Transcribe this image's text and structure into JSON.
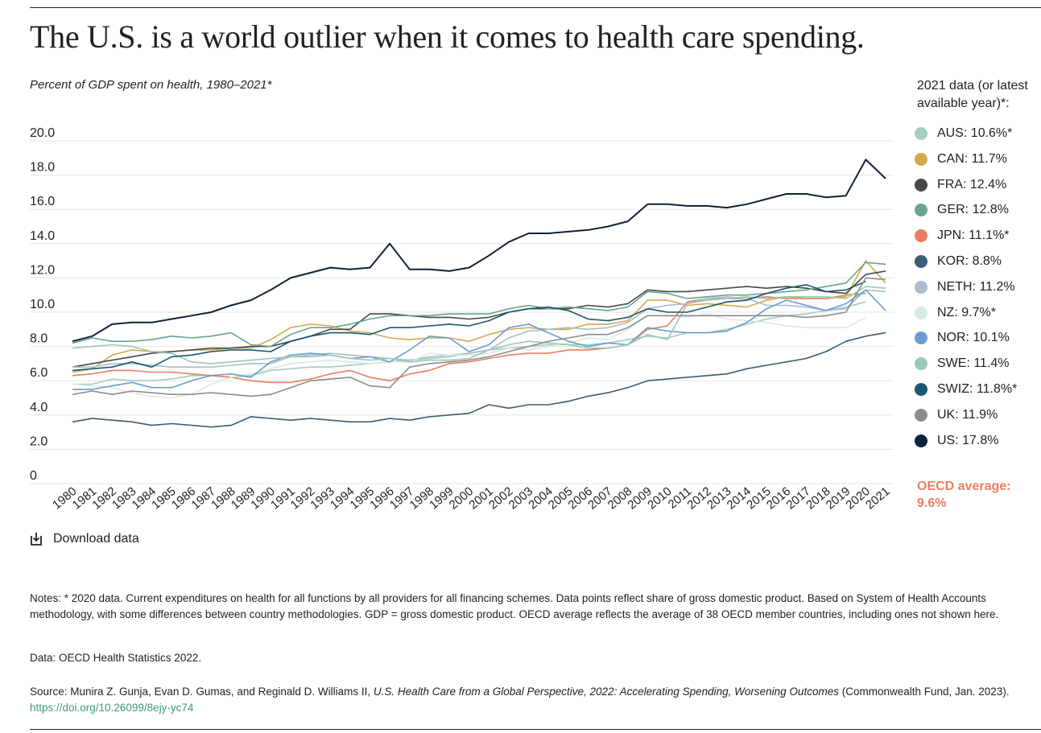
{
  "title": "The U.S. is a world outlier when it comes to health care spending.",
  "subtitle": "Percent of GDP spent on health, 1980–2021*",
  "legend": {
    "heading": "2021 data (or latest available year)*:",
    "oecd_average": "OECD average: 9.6%",
    "oecd_color": "#e8805e"
  },
  "download_label": "Download data",
  "notes": {
    "note": "Notes: * 2020 data. Current expenditures on health for all functions by all providers for all financing schemes. Data points reflect share of gross domestic product. Based on System of Health Accounts methodology, with some differences between country methodologies. GDP = gross domestic product. OECD average reflects the average of 38 OECD member countries, including ones not shown here.",
    "data_source": "Data: OECD Health Statistics 2022.",
    "source_prefix": "Source: Munira Z. Gunja, Evan D. Gumas, and Reginald D. Williams II, ",
    "source_title": "U.S. Health Care from a Global Perspective, 2022: Accelerating Spending, Worsening Outcomes",
    "source_suffix": " (Commonwealth Fund, Jan. 2023). ",
    "source_link": "https://doi.org/10.26099/8ejy-yc74"
  },
  "chart_data": {
    "type": "line",
    "x": [
      1980,
      1981,
      1982,
      1983,
      1984,
      1985,
      1986,
      1987,
      1988,
      1989,
      1990,
      1991,
      1992,
      1993,
      1994,
      1995,
      1996,
      1997,
      1998,
      1999,
      2000,
      2001,
      2002,
      2003,
      2004,
      2005,
      2006,
      2007,
      2008,
      2009,
      2010,
      2011,
      2012,
      2013,
      2014,
      2015,
      2016,
      2017,
      2018,
      2019,
      2020,
      2021
    ],
    "y_ticks": [
      "0",
      "2.0",
      "4.0",
      "6.0",
      "8.0",
      "10.0",
      "12.0",
      "14.0",
      "16.0",
      "18.0",
      "20.0"
    ],
    "ylim": [
      0,
      20
    ],
    "grid": true,
    "series": [
      {
        "name": "AUS",
        "legend": "AUS: 10.6%*",
        "color": "#a3cdbf",
        "values": [
          5.8,
          5.8,
          6.1,
          6.0,
          6.0,
          6.1,
          6.3,
          6.3,
          6.2,
          6.3,
          6.6,
          6.7,
          6.8,
          6.8,
          6.9,
          7.0,
          7.1,
          7.2,
          7.4,
          7.5,
          7.6,
          7.8,
          7.9,
          8.0,
          8.1,
          8.1,
          8.1,
          8.2,
          8.4,
          8.6,
          8.5,
          8.8,
          8.8,
          9.0,
          9.3,
          9.6,
          9.8,
          9.9,
          10.1,
          10.3,
          10.6,
          null
        ]
      },
      {
        "name": "CAN",
        "legend": "CAN: 11.7%",
        "color": "#d4a94c",
        "values": [
          6.5,
          6.7,
          7.5,
          7.8,
          7.7,
          7.7,
          7.8,
          7.8,
          7.9,
          7.9,
          8.4,
          9.1,
          9.3,
          9.2,
          8.9,
          8.8,
          8.5,
          8.4,
          8.5,
          8.5,
          8.3,
          8.7,
          9.0,
          9.1,
          9.0,
          9.0,
          9.3,
          9.3,
          9.5,
          10.7,
          10.7,
          10.4,
          10.5,
          10.4,
          10.3,
          10.7,
          10.9,
          10.8,
          10.8,
          10.9,
          13.0,
          11.7
        ]
      },
      {
        "name": "FRA",
        "legend": "FRA: 12.4%",
        "color": "#454a44",
        "values": [
          6.8,
          7.0,
          7.2,
          7.4,
          7.6,
          7.7,
          7.8,
          7.9,
          7.9,
          8.0,
          8.0,
          8.3,
          8.6,
          9.0,
          9.0,
          9.9,
          9.9,
          9.8,
          9.7,
          9.7,
          9.6,
          9.7,
          10.0,
          10.2,
          10.2,
          10.2,
          10.4,
          10.3,
          10.5,
          11.3,
          11.2,
          11.2,
          11.3,
          11.4,
          11.5,
          11.4,
          11.5,
          11.4,
          11.2,
          11.1,
          12.2,
          12.4
        ]
      },
      {
        "name": "GER",
        "legend": "GER: 12.8%",
        "color": "#66a68b",
        "values": [
          8.2,
          8.5,
          8.3,
          8.3,
          8.4,
          8.6,
          8.5,
          8.6,
          8.8,
          8.1,
          8.0,
          8.7,
          9.1,
          9.1,
          9.3,
          9.6,
          9.8,
          9.8,
          9.8,
          9.9,
          9.9,
          9.9,
          10.2,
          10.4,
          10.2,
          10.3,
          10.2,
          10.1,
          10.3,
          11.2,
          11.1,
          10.8,
          10.9,
          11.0,
          11.0,
          11.1,
          11.2,
          11.3,
          11.5,
          11.7,
          12.9,
          12.8
        ]
      },
      {
        "name": "JPN",
        "legend": "JPN: 11.1%*",
        "color": "#e8805e",
        "values": [
          6.3,
          6.4,
          6.6,
          6.6,
          6.5,
          6.5,
          6.4,
          6.3,
          6.2,
          6.0,
          5.9,
          5.9,
          6.1,
          6.4,
          6.6,
          6.2,
          6.0,
          6.4,
          6.6,
          7.0,
          7.1,
          7.3,
          7.5,
          7.6,
          7.6,
          7.8,
          7.8,
          7.9,
          8.1,
          9.0,
          9.2,
          10.6,
          10.8,
          10.8,
          10.8,
          10.9,
          10.8,
          10.8,
          10.8,
          11.0,
          11.1,
          null
        ]
      },
      {
        "name": "KOR",
        "legend": "KOR: 8.8%",
        "color": "#3a5f74",
        "values": [
          3.6,
          3.8,
          3.7,
          3.6,
          3.4,
          3.5,
          3.4,
          3.3,
          3.4,
          3.9,
          3.8,
          3.7,
          3.8,
          3.7,
          3.6,
          3.6,
          3.8,
          3.7,
          3.9,
          4.0,
          4.1,
          4.6,
          4.4,
          4.6,
          4.6,
          4.8,
          5.1,
          5.3,
          5.6,
          6.0,
          6.1,
          6.2,
          6.3,
          6.4,
          6.7,
          6.9,
          7.1,
          7.3,
          7.7,
          8.3,
          8.6,
          8.8
        ]
      },
      {
        "name": "NETH",
        "legend": "NETH: 11.2%",
        "color": "#a9bdcc",
        "values": [
          6.8,
          6.8,
          7.0,
          7.0,
          6.9,
          6.8,
          6.8,
          6.8,
          6.9,
          7.0,
          7.0,
          7.4,
          7.5,
          7.6,
          7.5,
          7.4,
          7.3,
          7.2,
          7.3,
          7.4,
          7.6,
          7.8,
          8.5,
          8.9,
          9.0,
          9.1,
          9.0,
          9.1,
          9.4,
          10.2,
          10.4,
          10.5,
          10.8,
          10.9,
          10.8,
          10.4,
          10.4,
          10.3,
          10.1,
          10.2,
          11.3,
          11.2
        ]
      },
      {
        "name": "NZ",
        "legend": "NZ: 9.7%*",
        "color": "#dbe9e4",
        "values": [
          5.8,
          5.7,
          5.6,
          5.3,
          5.1,
          5.0,
          5.2,
          5.8,
          6.2,
          6.4,
          6.7,
          7.0,
          7.1,
          7.2,
          7.1,
          7.0,
          7.1,
          7.1,
          7.6,
          7.5,
          7.5,
          7.6,
          7.9,
          7.8,
          8.0,
          8.2,
          8.5,
          8.4,
          9.0,
          9.8,
          9.8,
          9.7,
          9.9,
          9.6,
          9.5,
          9.4,
          9.2,
          9.1,
          9.1,
          9.1,
          9.7,
          null
        ]
      },
      {
        "name": "NOR",
        "legend": "NOR: 10.1%",
        "color": "#6a9ccf",
        "values": [
          5.5,
          5.5,
          5.7,
          5.9,
          5.6,
          5.6,
          6.0,
          6.3,
          6.4,
          6.2,
          7.1,
          7.5,
          7.6,
          7.5,
          7.3,
          7.4,
          7.1,
          7.8,
          8.6,
          8.5,
          7.7,
          8.1,
          9.1,
          9.3,
          8.8,
          8.3,
          8.0,
          8.2,
          8.1,
          9.1,
          8.9,
          8.8,
          8.8,
          8.9,
          9.4,
          10.2,
          10.7,
          10.4,
          10.1,
          10.5,
          11.3,
          10.1
        ]
      },
      {
        "name": "SWE",
        "legend": "SWE: 11.4%",
        "color": "#9acab0",
        "values": [
          7.9,
          8.0,
          8.1,
          8.0,
          7.7,
          7.6,
          7.1,
          7.0,
          7.1,
          7.2,
          7.3,
          7.4,
          7.4,
          7.5,
          7.3,
          7.2,
          7.3,
          7.1,
          7.2,
          7.2,
          7.3,
          7.8,
          8.1,
          8.3,
          8.2,
          8.1,
          7.9,
          7.9,
          8.1,
          8.7,
          8.4,
          10.5,
          10.7,
          10.8,
          10.9,
          10.8,
          10.9,
          10.9,
          10.9,
          10.8,
          11.5,
          11.4
        ]
      },
      {
        "name": "SWIZ",
        "legend": "SWIZ: 11.8%*",
        "color": "#1e5573",
        "values": [
          6.6,
          6.7,
          6.8,
          7.1,
          6.8,
          7.4,
          7.5,
          7.7,
          7.8,
          7.8,
          7.7,
          8.3,
          8.6,
          8.8,
          8.8,
          8.7,
          9.1,
          9.1,
          9.2,
          9.3,
          9.2,
          9.5,
          10.0,
          10.2,
          10.3,
          10.1,
          9.6,
          9.5,
          9.7,
          10.2,
          10.0,
          10.0,
          10.3,
          10.6,
          10.7,
          11.1,
          11.4,
          11.6,
          11.2,
          11.3,
          11.8,
          null
        ]
      },
      {
        "name": "UK",
        "legend": "UK: 11.9%",
        "color": "#8e8d87",
        "values": [
          5.2,
          5.4,
          5.2,
          5.4,
          5.3,
          5.2,
          5.2,
          5.3,
          5.2,
          5.1,
          5.2,
          5.6,
          6.0,
          6.1,
          6.2,
          5.7,
          5.6,
          6.8,
          7.0,
          7.1,
          7.2,
          7.4,
          7.7,
          8.0,
          8.3,
          8.5,
          8.7,
          8.7,
          9.1,
          9.8,
          9.8,
          9.8,
          9.8,
          9.8,
          9.8,
          9.8,
          9.8,
          9.7,
          9.8,
          10.0,
          12.0,
          11.9
        ]
      },
      {
        "name": "US",
        "legend": "US: 17.8%",
        "color": "#0f2239",
        "values": [
          8.3,
          8.6,
          9.3,
          9.4,
          9.4,
          9.6,
          9.8,
          10.0,
          10.4,
          10.7,
          11.3,
          12.0,
          12.3,
          12.6,
          12.5,
          12.6,
          14.0,
          12.5,
          12.5,
          12.4,
          12.6,
          13.3,
          14.1,
          14.6,
          14.6,
          14.7,
          14.8,
          15.0,
          15.3,
          16.3,
          16.3,
          16.2,
          16.2,
          16.1,
          16.3,
          16.6,
          16.9,
          16.9,
          16.7,
          16.8,
          18.9,
          17.8
        ]
      }
    ]
  }
}
